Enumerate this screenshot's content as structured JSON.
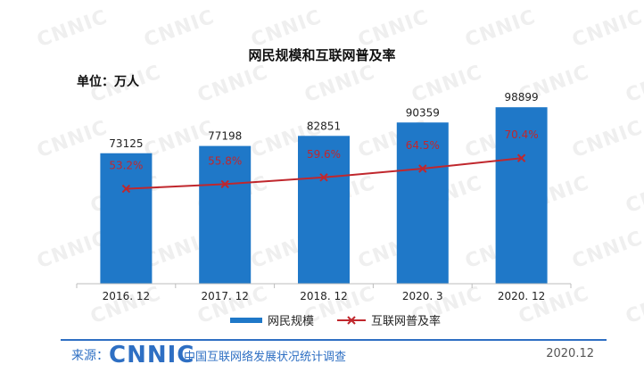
{
  "chart_data": {
    "type": "bar",
    "title": "网民规模和互联网普及率",
    "unit_label": "单位：万人",
    "categories": [
      "2016. 12",
      "2017. 12",
      "2018. 12",
      "2020. 3",
      "2020. 12"
    ],
    "series": [
      {
        "name": "网民规模",
        "type": "bar",
        "values": [
          73125,
          77198,
          82851,
          90359,
          98899
        ],
        "value_labels": [
          "73125",
          "77198",
          "82851",
          "90359",
          "98899"
        ],
        "color": "#1f78c8"
      },
      {
        "name": "互联网普及率",
        "type": "line",
        "values": [
          53.2,
          55.8,
          59.6,
          64.5,
          70.4
        ],
        "value_labels": [
          "53.2%",
          "55.8%",
          "59.6%",
          "64.5%",
          "70.4%"
        ],
        "color": "#c0272d"
      }
    ],
    "ylim_bar": [
      0,
      100000
    ],
    "ylim_line": [
      0,
      100
    ],
    "legend_position": "bottom",
    "grid": false
  },
  "watermark": "CNNIC",
  "footer": {
    "source_label": "来源：",
    "logo_text": "CNNIC",
    "org_text": "中国互联网络发展状况统计调查",
    "date": "2020.12"
  }
}
